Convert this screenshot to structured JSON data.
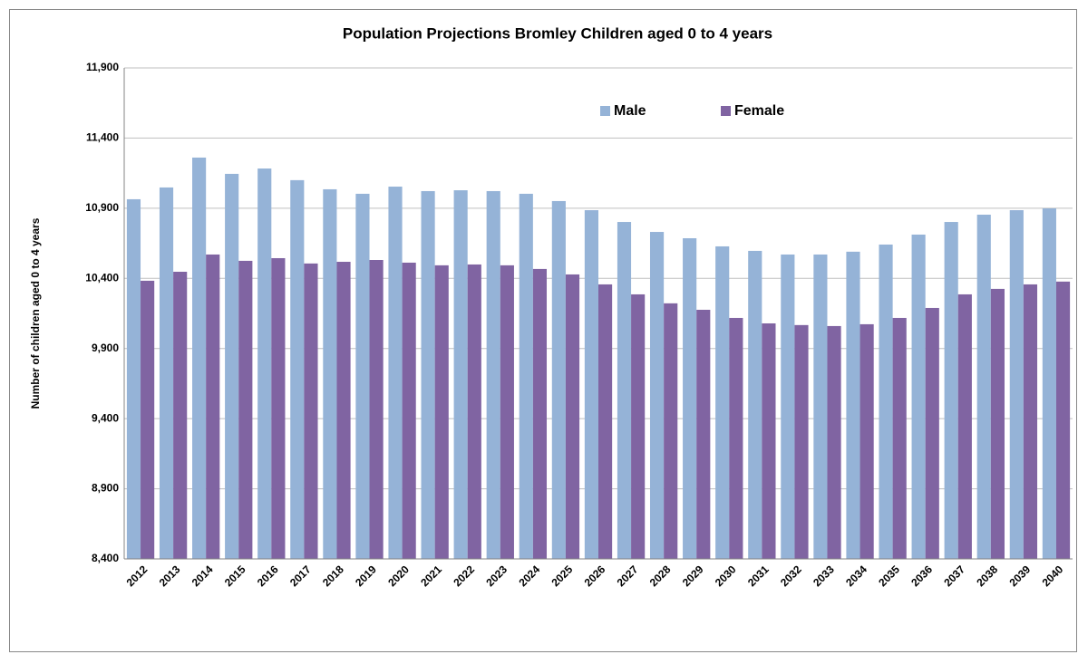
{
  "chart_data": {
    "type": "bar",
    "title": "Population Projections Bromley Children aged 0 to 4 years",
    "y_label": "Number of children aged 0 to 4 years",
    "categories": [
      "2012",
      "2013",
      "2014",
      "2015",
      "2016",
      "2017",
      "2018",
      "2019",
      "2020",
      "2021",
      "2022",
      "2023",
      "2024",
      "2025",
      "2026",
      "2027",
      "2028",
      "2029",
      "2030",
      "2031",
      "2032",
      "2033",
      "2034",
      "2035",
      "2036",
      "2037",
      "2038",
      "2039",
      "2040"
    ],
    "series": [
      {
        "name": "Male",
        "color": "#95b3d7",
        "values": [
          10964,
          11048,
          11261,
          11145,
          11183,
          11100,
          11035,
          11003,
          11054,
          11022,
          11028,
          11022,
          11003,
          10951,
          10886,
          10802,
          10731,
          10686,
          10628,
          10596,
          10570,
          10570,
          10590,
          10641,
          10712,
          10802,
          10854,
          10886,
          10899
        ]
      },
      {
        "name": "Female",
        "color": "#8064a2",
        "values": [
          10383,
          10447,
          10570,
          10525,
          10544,
          10506,
          10518,
          10531,
          10512,
          10493,
          10499,
          10493,
          10467,
          10428,
          10357,
          10286,
          10222,
          10176,
          10118,
          10079,
          10067,
          10060,
          10073,
          10118,
          10189,
          10286,
          10325,
          10357,
          10377
        ]
      }
    ],
    "ylim": [
      8400,
      11900
    ],
    "yticks": [
      {
        "value": 8400,
        "label": "8,400"
      },
      {
        "value": 8900,
        "label": "8,900"
      },
      {
        "value": 9400,
        "label": "9,400"
      },
      {
        "value": 9900,
        "label": "9,900"
      },
      {
        "value": 10400,
        "label": "10,400"
      },
      {
        "value": 10900,
        "label": "10,900"
      },
      {
        "value": 11400,
        "label": "11,400"
      },
      {
        "value": 11900,
        "label": "11,900"
      }
    ],
    "grid": true
  }
}
